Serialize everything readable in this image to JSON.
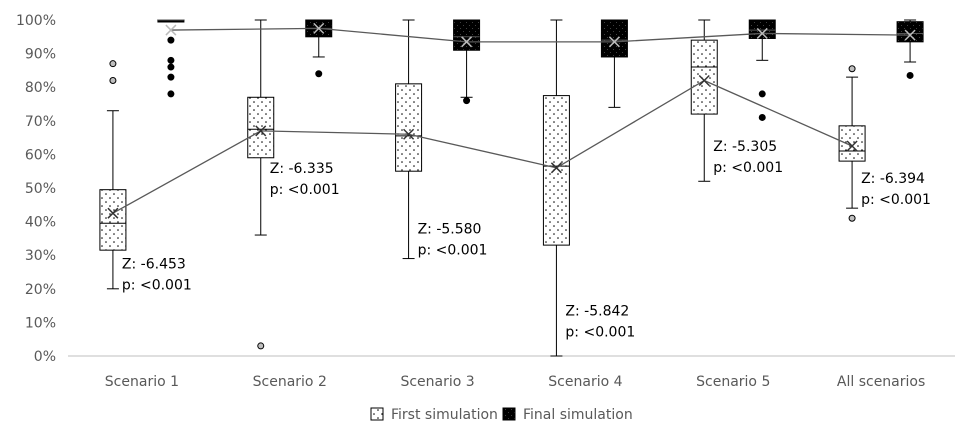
{
  "chart_data": {
    "type": "box",
    "y_axis": {
      "min": 0,
      "max": 100,
      "step": 10,
      "unit": "%"
    },
    "categories": [
      "Scenario 1",
      "Scenario 2",
      "Scenario 3",
      "Scenario 4",
      "Scenario 5",
      "All scenarios"
    ],
    "series": [
      {
        "name": "First simulation",
        "pattern": "dotted",
        "stats": [
          {
            "min": 20,
            "q1": 31.5,
            "median": 39.5,
            "q3": 49.5,
            "max": 73,
            "mean": 42.5,
            "outliers": [
              82,
              87
            ]
          },
          {
            "min": 36,
            "q1": 59,
            "median": 67.5,
            "q3": 77,
            "max": 100,
            "mean": 67,
            "outliers": [
              3
            ]
          },
          {
            "min": 29,
            "q1": 55,
            "median": 65.5,
            "q3": 81,
            "max": 100,
            "mean": 66,
            "outliers": []
          },
          {
            "min": 0,
            "q1": 33,
            "median": 56.5,
            "q3": 77.5,
            "max": 100,
            "mean": 56,
            "outliers": []
          },
          {
            "min": 52,
            "q1": 72,
            "median": 86,
            "q3": 94,
            "max": 100,
            "mean": 82,
            "outliers": []
          },
          {
            "min": 44,
            "q1": 58,
            "median": 61,
            "q3": 68.5,
            "max": 83,
            "mean": 62.5,
            "outliers": [
              41,
              85.5
            ]
          }
        ]
      },
      {
        "name": "Final simulation",
        "pattern": "solid-black",
        "stats": [
          {
            "min": 99.5,
            "q1": 99.5,
            "median": 100,
            "q3": 100,
            "max": 100,
            "mean": 97,
            "outliers": [
              78,
              83,
              86,
              88,
              94
            ]
          },
          {
            "min": 89,
            "q1": 95,
            "median": 97.5,
            "q3": 100,
            "max": 100,
            "mean": 97.5,
            "outliers": [
              84
            ]
          },
          {
            "min": 77,
            "q1": 91,
            "median": 95,
            "q3": 100,
            "max": 100,
            "mean": 93.5,
            "outliers": [
              76
            ]
          },
          {
            "min": 74,
            "q1": 89,
            "median": 94,
            "q3": 100,
            "max": 100,
            "mean": 93.5,
            "outliers": []
          },
          {
            "min": 88,
            "q1": 94.5,
            "median": 97,
            "q3": 100,
            "max": 100,
            "mean": 96,
            "outliers": [
              71,
              78
            ]
          },
          {
            "min": 87.5,
            "q1": 93.5,
            "median": 96,
            "q3": 99.5,
            "max": 100,
            "mean": 95.5,
            "outliers": [
              83.5
            ]
          }
        ]
      }
    ],
    "annotations": [
      {
        "category": 0,
        "z": "Z: -6.453",
        "p": "p: <0.001",
        "y": 26
      },
      {
        "category": 1,
        "z": "Z: -6.335",
        "p": "p: <0.001",
        "y": 54.5
      },
      {
        "category": 2,
        "z": "Z: -5.580",
        "p": "p: <0.001",
        "y": 36.5
      },
      {
        "category": 3,
        "z": "Z: -5.842",
        "p": "p: <0.001",
        "y": 12
      },
      {
        "category": 4,
        "z": "Z: -5.305",
        "p": "p: <0.001",
        "y": 61
      },
      {
        "category": 5,
        "z": "Z: -6.394",
        "p": "p: <0.001",
        "y": 51.5
      }
    ],
    "legend": {
      "position": "bottom",
      "items": [
        "First simulation",
        "Final simulation"
      ]
    },
    "grid": false,
    "colors": {
      "axis": "#bfbfbf",
      "text": "#595959",
      "ink": "#000000",
      "mean_line": "#595959"
    }
  }
}
